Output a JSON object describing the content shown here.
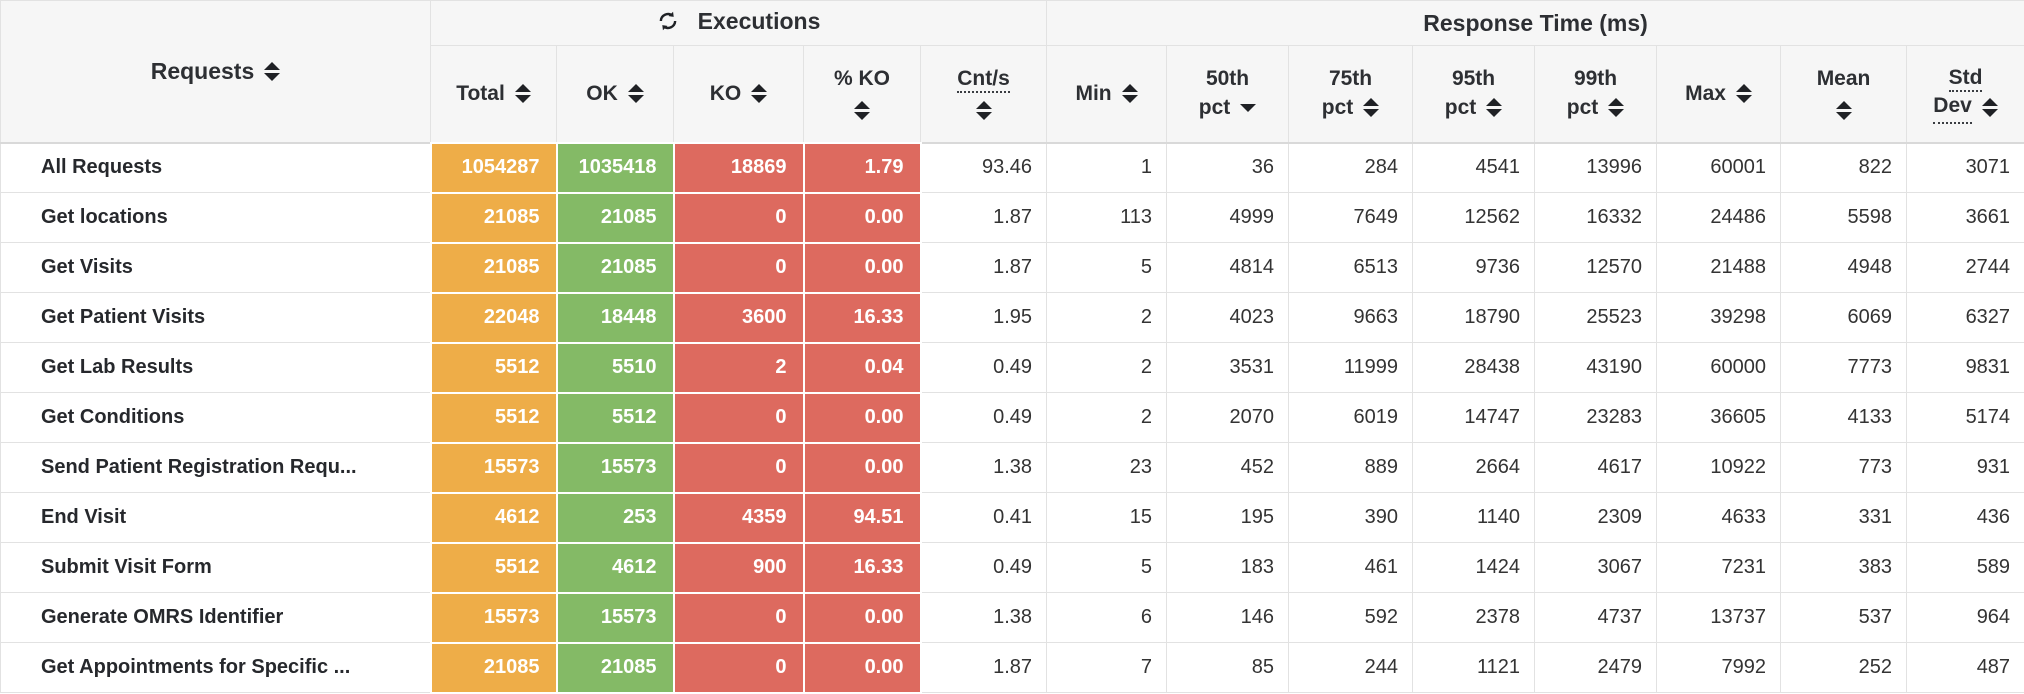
{
  "table": {
    "groups": {
      "requests": {
        "label": "Requests"
      },
      "executions": {
        "label": "Executions",
        "icon": "refresh-icon"
      },
      "response_time": {
        "label": "Response Time (ms)"
      }
    },
    "columns": {
      "total": {
        "label": "Total"
      },
      "ok": {
        "label": "OK"
      },
      "ko": {
        "label": "KO"
      },
      "pct_ko": {
        "label": "% KO"
      },
      "cnt_s": {
        "label": "Cnt/s"
      },
      "min": {
        "label": "Min"
      },
      "p50": {
        "line1": "50th",
        "line2": "pct",
        "sort": "desc"
      },
      "p75": {
        "line1": "75th",
        "line2": "pct"
      },
      "p95": {
        "line1": "95th",
        "line2": "pct"
      },
      "p99": {
        "line1": "99th",
        "line2": "pct"
      },
      "max": {
        "label": "Max"
      },
      "mean": {
        "label": "Mean"
      },
      "std_dev": {
        "line1": "Std",
        "line2": "Dev"
      }
    },
    "rows": [
      {
        "name": "All Requests",
        "total": "1054287",
        "ok": "1035418",
        "ko": "18869",
        "pct_ko": "1.79",
        "cnt_s": "93.46",
        "min": "1",
        "p50": "36",
        "p75": "284",
        "p95": "4541",
        "p99": "13996",
        "max": "60001",
        "mean": "822",
        "std_dev": "3071"
      },
      {
        "name": "Get locations",
        "total": "21085",
        "ok": "21085",
        "ko": "0",
        "pct_ko": "0.00",
        "cnt_s": "1.87",
        "min": "113",
        "p50": "4999",
        "p75": "7649",
        "p95": "12562",
        "p99": "16332",
        "max": "24486",
        "mean": "5598",
        "std_dev": "3661"
      },
      {
        "name": "Get Visits",
        "total": "21085",
        "ok": "21085",
        "ko": "0",
        "pct_ko": "0.00",
        "cnt_s": "1.87",
        "min": "5",
        "p50": "4814",
        "p75": "6513",
        "p95": "9736",
        "p99": "12570",
        "max": "21488",
        "mean": "4948",
        "std_dev": "2744"
      },
      {
        "name": "Get Patient Visits",
        "total": "22048",
        "ok": "18448",
        "ko": "3600",
        "pct_ko": "16.33",
        "cnt_s": "1.95",
        "min": "2",
        "p50": "4023",
        "p75": "9663",
        "p95": "18790",
        "p99": "25523",
        "max": "39298",
        "mean": "6069",
        "std_dev": "6327"
      },
      {
        "name": "Get Lab Results",
        "total": "5512",
        "ok": "5510",
        "ko": "2",
        "pct_ko": "0.04",
        "cnt_s": "0.49",
        "min": "2",
        "p50": "3531",
        "p75": "11999",
        "p95": "28438",
        "p99": "43190",
        "max": "60000",
        "mean": "7773",
        "std_dev": "9831"
      },
      {
        "name": "Get Conditions",
        "total": "5512",
        "ok": "5512",
        "ko": "0",
        "pct_ko": "0.00",
        "cnt_s": "0.49",
        "min": "2",
        "p50": "2070",
        "p75": "6019",
        "p95": "14747",
        "p99": "23283",
        "max": "36605",
        "mean": "4133",
        "std_dev": "5174"
      },
      {
        "name": "Send Patient Registration Requ...",
        "total": "15573",
        "ok": "15573",
        "ko": "0",
        "pct_ko": "0.00",
        "cnt_s": "1.38",
        "min": "23",
        "p50": "452",
        "p75": "889",
        "p95": "2664",
        "p99": "4617",
        "max": "10922",
        "mean": "773",
        "std_dev": "931"
      },
      {
        "name": "End Visit",
        "total": "4612",
        "ok": "253",
        "ko": "4359",
        "pct_ko": "94.51",
        "cnt_s": "0.41",
        "min": "15",
        "p50": "195",
        "p75": "390",
        "p95": "1140",
        "p99": "2309",
        "max": "4633",
        "mean": "331",
        "std_dev": "436"
      },
      {
        "name": "Submit Visit Form",
        "total": "5512",
        "ok": "4612",
        "ko": "900",
        "pct_ko": "16.33",
        "cnt_s": "0.49",
        "min": "5",
        "p50": "183",
        "p75": "461",
        "p95": "1424",
        "p99": "3067",
        "max": "7231",
        "mean": "383",
        "std_dev": "589"
      },
      {
        "name": "Generate OMRS Identifier",
        "total": "15573",
        "ok": "15573",
        "ko": "0",
        "pct_ko": "0.00",
        "cnt_s": "1.38",
        "min": "6",
        "p50": "146",
        "p75": "592",
        "p95": "2378",
        "p99": "4737",
        "max": "13737",
        "mean": "537",
        "std_dev": "964"
      },
      {
        "name": "Get Appointments for Specific ...",
        "total": "21085",
        "ok": "21085",
        "ko": "0",
        "pct_ko": "0.00",
        "cnt_s": "1.87",
        "min": "7",
        "p50": "85",
        "p75": "244",
        "p95": "1121",
        "p99": "2479",
        "max": "7992",
        "mean": "252",
        "std_dev": "487"
      }
    ]
  },
  "colors": {
    "total_bg": "#eead48",
    "ok_bg": "#84ba66",
    "ko_bg": "#dd6a5f",
    "header_bg": "#f6f6f6",
    "border": "#e2e2e2"
  }
}
